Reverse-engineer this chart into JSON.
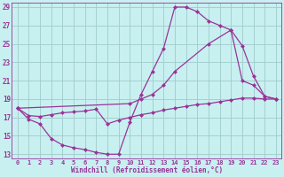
{
  "xlabel": "Windchill (Refroidissement éolien,°C)",
  "bg_color": "#c8f0f0",
  "grid_color": "#a0cccc",
  "line_color": "#993399",
  "xmin": -0.5,
  "xmax": 23.5,
  "ymin": 12.5,
  "ymax": 29.5,
  "line1_x": [
    0,
    1,
    2,
    3,
    4,
    5,
    6,
    7,
    8,
    9,
    10,
    11,
    12,
    13,
    14,
    15,
    16,
    17,
    18,
    19,
    20,
    21,
    22,
    23
  ],
  "line1_y": [
    18.0,
    16.8,
    16.3,
    14.7,
    14.0,
    13.7,
    13.5,
    13.2,
    13.0,
    13.0,
    16.5,
    19.5,
    22.0,
    24.5,
    29.0,
    29.0,
    28.5,
    27.5,
    27.0,
    26.5,
    21.0,
    20.5,
    19.3,
    19.0
  ],
  "line2_x": [
    0,
    10,
    11,
    12,
    13,
    14,
    17,
    19,
    20,
    21,
    22,
    23
  ],
  "line2_y": [
    18.0,
    18.5,
    19.0,
    19.5,
    20.5,
    22.0,
    25.0,
    26.5,
    24.8,
    21.5,
    19.3,
    19.0
  ],
  "line3_x": [
    0,
    1,
    2,
    3,
    4,
    5,
    6,
    7,
    8,
    9,
    10,
    11,
    12,
    13,
    14,
    15,
    16,
    17,
    18,
    19,
    20,
    21,
    22,
    23
  ],
  "line3_y": [
    18.0,
    17.2,
    17.1,
    17.3,
    17.5,
    17.6,
    17.7,
    17.9,
    16.3,
    16.7,
    17.0,
    17.3,
    17.5,
    17.8,
    18.0,
    18.2,
    18.4,
    18.5,
    18.7,
    18.9,
    19.1,
    19.1,
    19.0,
    19.0
  ],
  "yticks": [
    13,
    15,
    17,
    19,
    21,
    23,
    25,
    27,
    29
  ],
  "xticks": [
    0,
    1,
    2,
    3,
    4,
    5,
    6,
    7,
    8,
    9,
    10,
    11,
    12,
    13,
    14,
    15,
    16,
    17,
    18,
    19,
    20,
    21,
    22,
    23
  ],
  "markersize": 2.5
}
